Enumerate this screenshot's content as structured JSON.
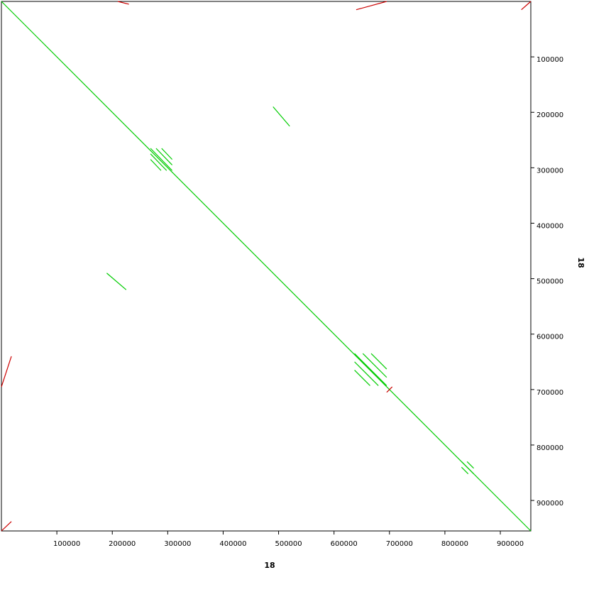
{
  "chart_data": {
    "type": "dotplot",
    "x_label": "18",
    "y_label": "18",
    "xlim": [
      0,
      955000
    ],
    "ylim": [
      0,
      955000
    ],
    "y_inverted": true,
    "xticks": [
      100000,
      200000,
      300000,
      400000,
      500000,
      600000,
      700000,
      800000,
      900000
    ],
    "yticks": [
      100000,
      200000,
      300000,
      400000,
      500000,
      600000,
      700000,
      800000,
      900000
    ],
    "series": [
      {
        "color": "#00cc00",
        "segments": [
          [
            0,
            0,
            955000,
            955000
          ],
          [
            490000,
            190000,
            520000,
            225000
          ],
          [
            190000,
            490000,
            225000,
            520000
          ],
          [
            269000,
            265000,
            308000,
            305000
          ],
          [
            269000,
            275000,
            298000,
            305000
          ],
          [
            279000,
            265000,
            308000,
            295000
          ],
          [
            269000,
            285000,
            288000,
            305000
          ],
          [
            289000,
            265000,
            308000,
            285000
          ],
          [
            637000,
            635000,
            695000,
            693000
          ],
          [
            637000,
            650000,
            680000,
            693000
          ],
          [
            637000,
            665000,
            665000,
            693000
          ],
          [
            652000,
            635000,
            695000,
            678000
          ],
          [
            667000,
            635000,
            695000,
            663000
          ],
          [
            830000,
            830000,
            852000,
            852000
          ],
          [
            830000,
            840000,
            842000,
            852000
          ],
          [
            840000,
            830000,
            852000,
            842000
          ]
        ]
      },
      {
        "color": "#cc0000",
        "segments": [
          [
            0,
            955000,
            18000,
            938000
          ],
          [
            938000,
            15000,
            955000,
            0
          ],
          [
            640000,
            15000,
            695000,
            0
          ],
          [
            0,
            695000,
            18000,
            640000
          ],
          [
            695000,
            705000,
            705000,
            695000
          ],
          [
            210000,
            0,
            230000,
            5000
          ]
        ]
      }
    ]
  }
}
